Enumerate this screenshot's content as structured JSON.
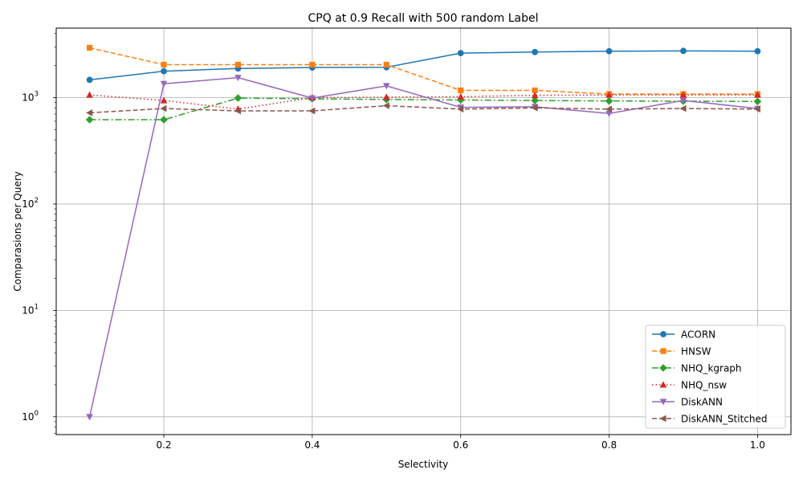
{
  "chart_data": {
    "type": "line",
    "title": "CPQ at 0.9 Recall with 500 random Label",
    "xlabel": "Selectivity",
    "ylabel": "Comparasions per Query",
    "xlim": [
      0.055,
      1.045
    ],
    "ylim": [
      0.68,
      4500
    ],
    "yscale": "log",
    "grid": true,
    "legend_position": "lower-right",
    "x_ticks": [
      {
        "value": 0.2,
        "label": "0.2"
      },
      {
        "value": 0.4,
        "label": "0.4"
      },
      {
        "value": 0.6,
        "label": "0.6"
      },
      {
        "value": 0.8,
        "label": "0.8"
      },
      {
        "value": 1.0,
        "label": "1.0"
      }
    ],
    "y_ticks": [
      {
        "value": 1,
        "base": "10",
        "exp": "0"
      },
      {
        "value": 10,
        "base": "10",
        "exp": "1"
      },
      {
        "value": 100,
        "base": "10",
        "exp": "2"
      },
      {
        "value": 1000,
        "base": "10",
        "exp": "3"
      }
    ],
    "x": [
      0.1,
      0.2,
      0.3,
      0.4,
      0.5,
      0.6,
      0.7,
      0.8,
      0.9,
      1.0
    ],
    "series": [
      {
        "name": "ACORN",
        "color": "#1f77b4",
        "dash": "",
        "marker": "circle",
        "values": [
          1470,
          1770,
          1880,
          1920,
          1930,
          2620,
          2680,
          2730,
          2750,
          2730
        ]
      },
      {
        "name": "HNSW",
        "color": "#ff7f0e",
        "dash": "6,3",
        "marker": "square",
        "values": [
          2940,
          2040,
          2040,
          2040,
          2040,
          1170,
          1170,
          1080,
          1080,
          1080
        ]
      },
      {
        "name": "NHQ_kgraph",
        "color": "#2ca02c",
        "dash": "8,3,2,3",
        "marker": "diamond",
        "values": [
          620,
          620,
          990,
          975,
          960,
          950,
          940,
          930,
          925,
          920
        ]
      },
      {
        "name": "NHQ_nsw",
        "color": "#d62728",
        "dash": "1.5,3",
        "marker": "triangle-up",
        "values": [
          1060,
          940,
          780,
          1000,
          1010,
          1020,
          1050,
          1060,
          1060,
          1060
        ]
      },
      {
        "name": "DiskANN",
        "color": "#9467bd",
        "dash": "",
        "marker": "triangle-down",
        "values": [
          1,
          1350,
          1540,
          990,
          1290,
          810,
          820,
          710,
          940,
          790
        ]
      },
      {
        "name": "DiskANN_Stitched",
        "color": "#8c564b",
        "dash": "6,3",
        "marker": "triangle-left",
        "values": [
          720,
          790,
          750,
          750,
          840,
          780,
          800,
          780,
          790,
          780
        ]
      }
    ]
  }
}
